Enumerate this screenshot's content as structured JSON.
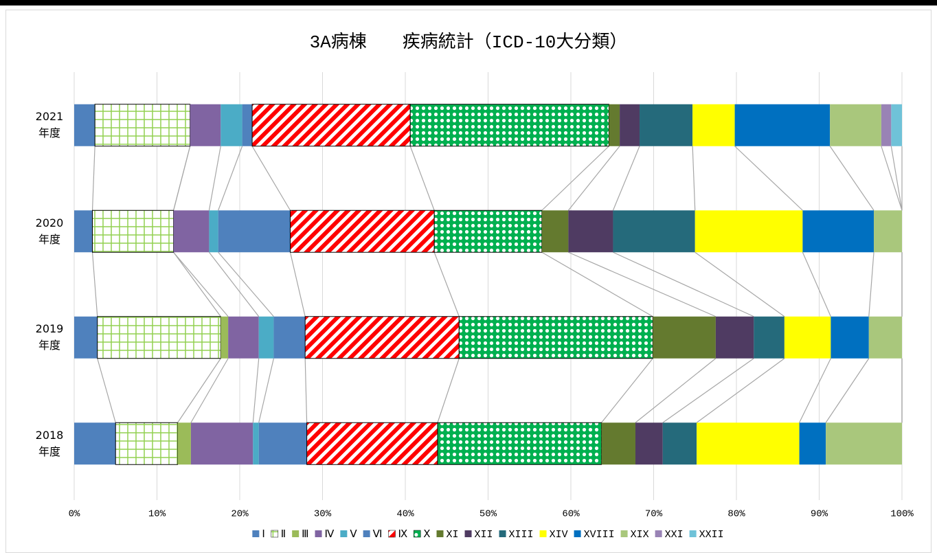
{
  "chart_data": {
    "type": "stacked-bar-100",
    "orientation": "horizontal",
    "title": "3A病棟　　疾病統計（ICD-10大分類）",
    "categories": [
      "2021年度",
      "2020年度",
      "2019年度",
      "2018年度"
    ],
    "xlim": [
      0,
      100
    ],
    "xticks": [
      {
        "value": 0,
        "label": "0%"
      },
      {
        "value": 10,
        "label": "10%"
      },
      {
        "value": 20,
        "label": "20%"
      },
      {
        "value": 30,
        "label": "30%"
      },
      {
        "value": 40,
        "label": "40%"
      },
      {
        "value": 50,
        "label": "50%"
      },
      {
        "value": 60,
        "label": "60%"
      },
      {
        "value": 70,
        "label": "70%"
      },
      {
        "value": 80,
        "label": "80%"
      },
      {
        "value": 90,
        "label": "90%"
      },
      {
        "value": 100,
        "label": "100%"
      }
    ],
    "grid": true,
    "series_lines": true,
    "legend": "bottom",
    "series": [
      {
        "name": "Ⅰ",
        "color": "#4f81bd",
        "values": [
          2.5,
          2.2,
          2.8,
          5.0
        ]
      },
      {
        "name": "Ⅱ",
        "color": "#92d050",
        "pattern": "grid",
        "values": [
          11.5,
          9.8,
          14.9,
          7.5
        ]
      },
      {
        "name": "Ⅲ",
        "color": "#9bbb59",
        "values": [
          0,
          0,
          0.9,
          1.6
        ]
      },
      {
        "name": "Ⅳ",
        "color": "#8064a2",
        "values": [
          3.7,
          4.3,
          3.7,
          7.5
        ]
      },
      {
        "name": "Ⅴ",
        "color": "#4bacc6",
        "values": [
          2.6,
          1.1,
          1.8,
          0.7
        ]
      },
      {
        "name": "Ⅵ",
        "color": "#4f81bd",
        "values": [
          1.2,
          8.7,
          3.8,
          5.8
        ]
      },
      {
        "name": "Ⅸ",
        "color": "#ff0000",
        "pattern": "stripes",
        "values": [
          19.1,
          17.4,
          18.6,
          15.8
        ]
      },
      {
        "name": "Ⅹ",
        "color": "#00b050",
        "pattern": "dots",
        "values": [
          24.0,
          13.0,
          23.4,
          19.8
        ]
      },
      {
        "name": "XI",
        "color": "#647a2f",
        "values": [
          1.3,
          3.2,
          7.6,
          4.1
        ]
      },
      {
        "name": "XII",
        "color": "#4f3b62",
        "values": [
          2.4,
          5.4,
          4.6,
          3.3
        ]
      },
      {
        "name": "XIII",
        "color": "#256a7b",
        "values": [
          6.4,
          9.9,
          3.7,
          4.1
        ]
      },
      {
        "name": "XIV",
        "color": "#ffff00",
        "values": [
          5.1,
          13.0,
          5.6,
          12.4
        ]
      },
      {
        "name": "XVIII",
        "color": "#0070c0",
        "values": [
          11.5,
          8.6,
          4.6,
          3.2
        ]
      },
      {
        "name": "XIX",
        "color": "#a9c77c",
        "values": [
          6.2,
          3.4,
          4.0,
          9.2
        ]
      },
      {
        "name": "XXI",
        "color": "#9983b5",
        "values": [
          1.2,
          0,
          0,
          0
        ]
      },
      {
        "name": "XXII",
        "color": "#6fc2d8",
        "values": [
          1.3,
          0,
          0,
          0
        ]
      }
    ]
  }
}
